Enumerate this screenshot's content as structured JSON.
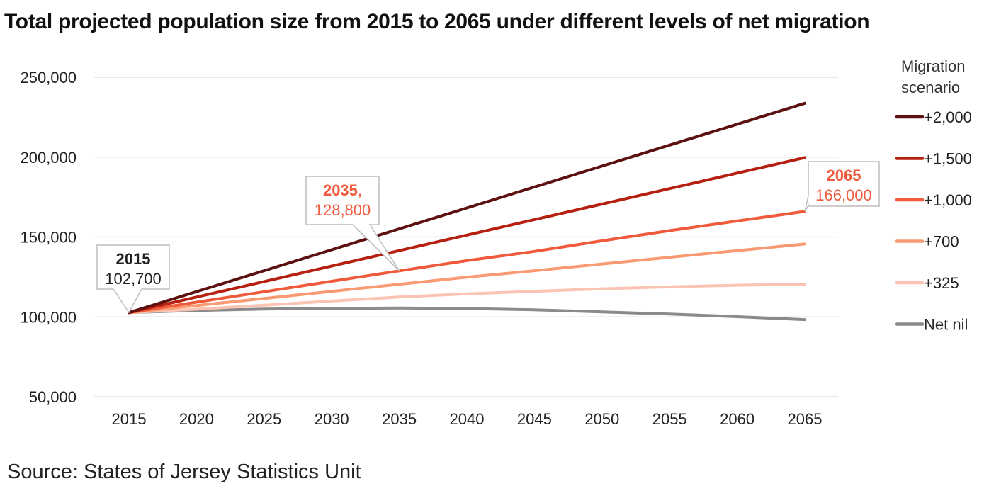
{
  "title": "Total projected population size from 2015 to 2065 under different levels of net migration",
  "source": "Source: States of Jersey Statistics Unit",
  "chart_data": {
    "type": "line",
    "title": "Total projected population size from 2015 to 2065 under different levels of net migration",
    "x": [
      2015,
      2020,
      2025,
      2030,
      2035,
      2040,
      2045,
      2050,
      2055,
      2060,
      2065
    ],
    "xlabel": "",
    "ylabel": "",
    "ylim": [
      50000,
      250000
    ],
    "yticks": [
      50000,
      100000,
      150000,
      200000,
      250000
    ],
    "ytick_labels": [
      "50,000",
      "100,000",
      "150,000",
      "200,000",
      "250,000"
    ],
    "grid": true,
    "legend_title": [
      "Migration",
      "scenario"
    ],
    "legend_position": "right",
    "series": [
      {
        "name": "+2,000",
        "color": "#5c1010",
        "values": [
          102700,
          115800,
          128900,
          142000,
          155100,
          168200,
          181300,
          194400,
          207500,
          220600,
          233700
        ]
      },
      {
        "name": "+1,500",
        "color": "#b52010",
        "values": [
          102700,
          112400,
          122100,
          131800,
          141500,
          151200,
          160900,
          170600,
          180300,
          190000,
          199700
        ]
      },
      {
        "name": "+1,000",
        "color": "#ef5a3c",
        "values": [
          102700,
          109200,
          115700,
          122300,
          128800,
          135200,
          141000,
          147600,
          154000,
          160000,
          166000
        ]
      },
      {
        "name": "+700",
        "color": "#f99a72",
        "values": [
          102700,
          107100,
          111500,
          116000,
          120400,
          124800,
          128900,
          133100,
          137300,
          141500,
          145600
        ]
      },
      {
        "name": "+325",
        "color": "#fbc4b2",
        "values": [
          102700,
          104800,
          107300,
          109900,
          112400,
          114400,
          116000,
          117600,
          118800,
          119800,
          120500
        ]
      },
      {
        "name": "Net nil",
        "color": "#8a8a8a",
        "values": [
          102700,
          104000,
          104900,
          105300,
          105500,
          105200,
          104400,
          103100,
          101800,
          100100,
          98300
        ]
      }
    ],
    "annotations": [
      {
        "year": "2015",
        "value": "102,700",
        "color": "#222222"
      },
      {
        "year": "2035",
        "year_suffix": ",",
        "value": "128,800",
        "color": "#ef5a3c"
      },
      {
        "year": "2065",
        "value": "166,000",
        "color": "#ef5a3c"
      }
    ]
  }
}
